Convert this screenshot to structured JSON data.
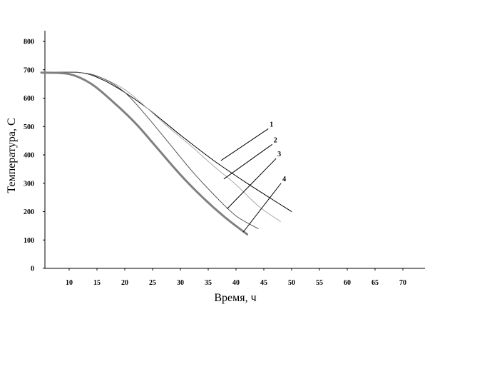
{
  "chart_data": {
    "type": "line",
    "title": "",
    "xlabel": "Время, ч",
    "ylabel": "Температура, С",
    "xlim": [
      5,
      72
    ],
    "ylim": [
      0,
      800
    ],
    "grid": false,
    "x_ticks": [
      10,
      15,
      20,
      25,
      30,
      35,
      40,
      45,
      50,
      55,
      60,
      65,
      70
    ],
    "y_ticks": [
      0,
      100,
      200,
      300,
      400,
      500,
      600,
      700,
      800
    ],
    "series": [
      {
        "name": "1",
        "color": "#000000",
        "width": 1,
        "x": [
          5,
          12,
          16,
          20,
          24,
          30,
          36,
          42,
          50
        ],
        "y": [
          690,
          690,
          665,
          620,
          565,
          470,
          380,
          300,
          200
        ],
        "label_at": [
          37.3,
          380
        ],
        "label_pos": [
          45.8,
          492
        ]
      },
      {
        "name": "2",
        "color": "#aaaaaa",
        "width": 1,
        "x": [
          5,
          12,
          16,
          20,
          24,
          28,
          32,
          36,
          40,
          44,
          48
        ],
        "y": [
          690,
          690,
          670,
          630,
          565,
          495,
          430,
          360,
          295,
          220,
          165
        ],
        "label_at": [
          37.8,
          315
        ],
        "label_pos": [
          46.5,
          437
        ]
      },
      {
        "name": "3",
        "color": "#555555",
        "width": 1,
        "x": [
          5,
          12,
          16,
          20,
          24,
          28,
          32,
          36,
          40,
          44
        ],
        "y": [
          690,
          690,
          670,
          620,
          535,
          440,
          345,
          260,
          185,
          140
        ],
        "label_at": [
          38.4,
          210
        ],
        "label_pos": [
          47.2,
          387
        ]
      },
      {
        "name": "4",
        "color": "#808080",
        "width": 3,
        "x": [
          5,
          10,
          14,
          18,
          22,
          26,
          30,
          34,
          38,
          42
        ],
        "y": [
          690,
          685,
          650,
          585,
          510,
          420,
          330,
          250,
          180,
          120
        ],
        "label_at": [
          41.3,
          128
        ],
        "label_pos": [
          48.1,
          300
        ]
      }
    ]
  }
}
